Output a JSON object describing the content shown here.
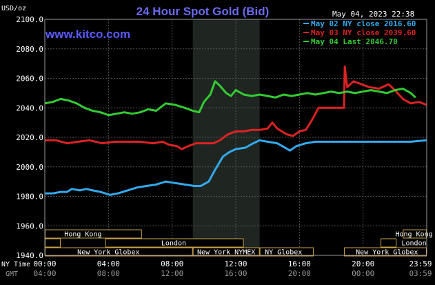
{
  "chart_data": {
    "type": "line",
    "title": "24 Hour Spot Gold (Bid)",
    "ylabel": "USD/oz",
    "date_label": "May 04, 2023 22:38",
    "watermark": "www.kitco.com",
    "ylim": [
      1940,
      2100
    ],
    "y_ticks": [
      {
        "value": 1940,
        "label": "1940.0"
      },
      {
        "value": 1960,
        "label": "1960.0"
      },
      {
        "value": 1980,
        "label": "1980.0"
      },
      {
        "value": 2000,
        "label": "2000.0"
      },
      {
        "value": 2020,
        "label": "2020.0"
      },
      {
        "value": 2040,
        "label": "2040.0"
      },
      {
        "value": 2060,
        "label": "2060.0"
      },
      {
        "value": 2080,
        "label": "2080.0"
      },
      {
        "value": 2100,
        "label": "2100.0"
      }
    ],
    "xlim": [
      0,
      24
    ],
    "x_axis_ny_label": "NY Time",
    "x_axis_gmt_label": "GMT",
    "x_ticks": [
      {
        "hour": 0,
        "ny": "00:00",
        "gmt": "04:00"
      },
      {
        "hour": 4,
        "ny": "04:00",
        "gmt": "08:00"
      },
      {
        "hour": 8,
        "ny": "08:00",
        "gmt": "12:00"
      },
      {
        "hour": 12,
        "ny": "12:00",
        "gmt": "16:00"
      },
      {
        "hour": 16,
        "ny": "16:00",
        "gmt": "20:00"
      },
      {
        "hour": 20,
        "ny": "20:00",
        "gmt": "00:00"
      },
      {
        "hour": 24,
        "ny": "23:59",
        "gmt": "03:59"
      }
    ],
    "highlight_band_hours": [
      9.3,
      13.5
    ],
    "sessions": [
      {
        "name": "Hong Kong",
        "row": 0,
        "segments": [
          [
            0,
            6.1
          ],
          [
            22.5,
            24
          ]
        ],
        "label_at": [
          2.4,
          23.2
        ]
      },
      {
        "name": "London",
        "row": 1,
        "segments": [
          [
            0,
            1
          ],
          [
            3.8,
            12.5
          ],
          [
            21.1,
            22.1
          ]
        ],
        "label_at": [
          8.1,
          23.2
        ]
      },
      {
        "name": "New York Globex",
        "row": 2,
        "segments": [
          [
            0,
            9.3
          ],
          [
            18.8,
            24
          ]
        ],
        "label_at": [
          4,
          21.5
        ]
      },
      {
        "name": "New York NYMEX",
        "row": 2,
        "segments": [
          [
            9.3,
            13.5
          ]
        ],
        "label_at": [
          11.4
        ]
      },
      {
        "name": "NY Globex",
        "row": 2,
        "segments": [
          [
            13.5,
            16.9
          ]
        ],
        "label_at": [
          15
        ]
      }
    ],
    "legend_position": "top-right",
    "series": [
      {
        "name": "May 02 NY close 2016.60",
        "color": "#33aaee",
        "points": [
          [
            0,
            1982
          ],
          [
            0.5,
            1982
          ],
          [
            1,
            1983
          ],
          [
            1.4,
            1983
          ],
          [
            1.7,
            1985
          ],
          [
            2.2,
            1984
          ],
          [
            2.6,
            1985
          ],
          [
            3,
            1984
          ],
          [
            3.5,
            1983
          ],
          [
            4.1,
            1981
          ],
          [
            4.6,
            1982
          ],
          [
            5.2,
            1984
          ],
          [
            5.8,
            1986
          ],
          [
            6.4,
            1987
          ],
          [
            7,
            1988
          ],
          [
            7.6,
            1990
          ],
          [
            8.2,
            1989
          ],
          [
            8.8,
            1988
          ],
          [
            9.4,
            1987
          ],
          [
            9.8,
            1987
          ],
          [
            10.3,
            1990
          ],
          [
            10.7,
            1998
          ],
          [
            11.2,
            2007
          ],
          [
            11.6,
            2010
          ],
          [
            12,
            2012
          ],
          [
            12.6,
            2013
          ],
          [
            13.1,
            2016
          ],
          [
            13.5,
            2018
          ],
          [
            14,
            2017
          ],
          [
            14.6,
            2016
          ],
          [
            15.1,
            2013
          ],
          [
            15.4,
            2011
          ],
          [
            15.8,
            2014
          ],
          [
            16.4,
            2016
          ],
          [
            17,
            2017
          ],
          [
            17.7,
            2017
          ],
          [
            18.5,
            2017
          ],
          [
            19.3,
            2017
          ],
          [
            20,
            2017
          ],
          [
            21,
            2017
          ],
          [
            22,
            2017
          ],
          [
            23,
            2017
          ],
          [
            24,
            2018
          ]
        ]
      },
      {
        "name": "May 03 NY close 2039.60",
        "color": "#dd2222",
        "points": [
          [
            0,
            2018
          ],
          [
            0.7,
            2018
          ],
          [
            1.4,
            2016
          ],
          [
            2.1,
            2017
          ],
          [
            2.8,
            2018
          ],
          [
            3.6,
            2016
          ],
          [
            4.4,
            2017
          ],
          [
            5.2,
            2017
          ],
          [
            6,
            2017
          ],
          [
            6.8,
            2016
          ],
          [
            7.4,
            2017
          ],
          [
            7.8,
            2015
          ],
          [
            8.3,
            2014
          ],
          [
            8.6,
            2012
          ],
          [
            9,
            2014
          ],
          [
            9.5,
            2016
          ],
          [
            10,
            2016
          ],
          [
            10.6,
            2016
          ],
          [
            11,
            2018
          ],
          [
            11.5,
            2022
          ],
          [
            12,
            2024
          ],
          [
            12.5,
            2024
          ],
          [
            13,
            2025
          ],
          [
            13.5,
            2025
          ],
          [
            14,
            2026
          ],
          [
            14.3,
            2030
          ],
          [
            14.6,
            2026
          ],
          [
            14.9,
            2024
          ],
          [
            15.2,
            2022
          ],
          [
            15.6,
            2021
          ],
          [
            16,
            2024
          ],
          [
            16.4,
            2025
          ],
          [
            16.8,
            2032
          ],
          [
            17.2,
            2040
          ],
          [
            17.7,
            2040
          ],
          [
            18.3,
            2040
          ],
          [
            18.8,
            2040
          ],
          [
            18.85,
            2068
          ],
          [
            19,
            2054
          ],
          [
            19.4,
            2058
          ],
          [
            19.9,
            2056
          ],
          [
            20.4,
            2054
          ],
          [
            21,
            2053
          ],
          [
            21.6,
            2056
          ],
          [
            22,
            2052
          ],
          [
            22.5,
            2046
          ],
          [
            23,
            2043
          ],
          [
            23.5,
            2044
          ],
          [
            24,
            2042
          ]
        ]
      },
      {
        "name": "May 04 Last 2046.70",
        "color": "#33cc33",
        "points": [
          [
            0,
            2043
          ],
          [
            0.5,
            2044
          ],
          [
            1,
            2046
          ],
          [
            1.5,
            2045
          ],
          [
            2,
            2043
          ],
          [
            2.5,
            2040
          ],
          [
            3,
            2038
          ],
          [
            3.5,
            2037
          ],
          [
            4,
            2035
          ],
          [
            4.5,
            2036
          ],
          [
            5,
            2037
          ],
          [
            5.5,
            2036
          ],
          [
            6,
            2037
          ],
          [
            6.5,
            2039
          ],
          [
            7,
            2038
          ],
          [
            7.6,
            2043
          ],
          [
            8.2,
            2042
          ],
          [
            8.8,
            2040
          ],
          [
            9.3,
            2038
          ],
          [
            9.7,
            2037
          ],
          [
            10,
            2044
          ],
          [
            10.4,
            2049
          ],
          [
            10.7,
            2058
          ],
          [
            11,
            2055
          ],
          [
            11.4,
            2050
          ],
          [
            11.7,
            2048
          ],
          [
            12,
            2052
          ],
          [
            12.5,
            2049
          ],
          [
            13,
            2048
          ],
          [
            13.5,
            2049
          ],
          [
            14,
            2048
          ],
          [
            14.5,
            2047
          ],
          [
            15,
            2049
          ],
          [
            15.5,
            2048
          ],
          [
            16,
            2049
          ],
          [
            16.5,
            2050
          ],
          [
            17,
            2049
          ],
          [
            17.5,
            2050
          ],
          [
            18,
            2051
          ],
          [
            18.5,
            2050
          ],
          [
            19,
            2051
          ],
          [
            19.5,
            2050
          ],
          [
            20,
            2051
          ],
          [
            20.5,
            2052
          ],
          [
            21,
            2051
          ],
          [
            21.5,
            2050
          ],
          [
            22,
            2052
          ],
          [
            22.5,
            2053
          ],
          [
            23,
            2050
          ],
          [
            23.3,
            2047
          ]
        ]
      }
    ]
  }
}
